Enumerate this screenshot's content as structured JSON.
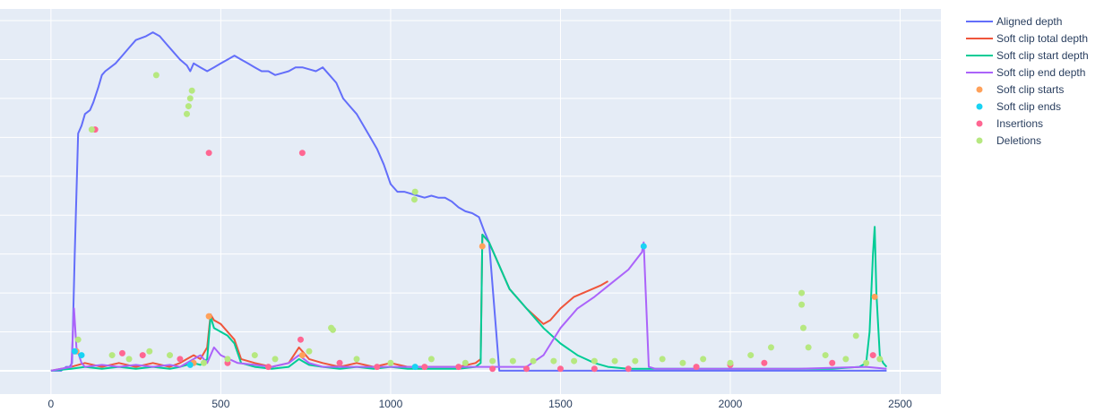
{
  "chart_data": {
    "type": "line",
    "title": "",
    "xlabel": "",
    "ylabel": "",
    "xlim": [
      -150,
      2620
    ],
    "ylim": [
      -60,
      930
    ],
    "x_ticks": [
      0,
      500,
      1000,
      1500,
      2000,
      2500
    ],
    "x_tick_labels": [
      "0",
      "500",
      "1000",
      "1500",
      "2000",
      "2500"
    ],
    "y_tick_labels_shown": false,
    "grid": true,
    "legend_position": "top-right",
    "series": [
      {
        "name": "Aligned depth",
        "kind": "line",
        "color": "#636efa",
        "x": [
          0,
          30,
          45,
          55,
          62,
          70,
          80,
          90,
          100,
          115,
          125,
          140,
          150,
          160,
          175,
          190,
          210,
          230,
          250,
          280,
          300,
          320,
          340,
          360,
          380,
          400,
          410,
          420,
          440,
          460,
          480,
          500,
          520,
          540,
          560,
          580,
          600,
          620,
          640,
          660,
          680,
          700,
          720,
          740,
          760,
          780,
          800,
          820,
          840,
          860,
          880,
          900,
          920,
          940,
          960,
          980,
          1000,
          1020,
          1040,
          1060,
          1080,
          1100,
          1120,
          1140,
          1160,
          1180,
          1200,
          1220,
          1240,
          1260,
          1275,
          1290,
          1320,
          1400,
          1500,
          1600,
          1700,
          1740,
          1760,
          1780,
          1800,
          1850,
          1900,
          1950,
          2000,
          2050,
          2100,
          2150,
          2200,
          2250,
          2300,
          2350,
          2380,
          2400,
          2410,
          2420,
          2425,
          2430,
          2440,
          2450,
          2460
        ],
        "values": [
          0,
          0,
          10,
          10,
          20,
          300,
          610,
          630,
          660,
          670,
          690,
          730,
          760,
          770,
          780,
          790,
          810,
          830,
          850,
          860,
          870,
          860,
          840,
          820,
          800,
          785,
          770,
          790,
          780,
          770,
          780,
          790,
          800,
          810,
          800,
          790,
          780,
          770,
          770,
          760,
          765,
          770,
          780,
          780,
          775,
          770,
          780,
          760,
          740,
          700,
          680,
          660,
          630,
          600,
          570,
          530,
          480,
          460,
          460,
          455,
          450,
          445,
          450,
          445,
          445,
          435,
          420,
          410,
          405,
          395,
          360,
          330,
          0,
          0,
          0,
          0,
          0,
          0,
          0,
          0,
          0,
          0,
          0,
          0,
          0,
          0,
          0,
          0,
          0,
          0,
          0,
          0,
          0,
          0,
          0,
          0,
          0,
          0,
          0,
          0,
          0
        ]
      },
      {
        "name": "Soft clip total depth",
        "kind": "line",
        "color": "#ef553b",
        "x": [
          0,
          60,
          100,
          150,
          200,
          250,
          300,
          350,
          380,
          400,
          420,
          440,
          460,
          470,
          480,
          500,
          520,
          540,
          560,
          600,
          650,
          700,
          730,
          740,
          760,
          800,
          850,
          900,
          950,
          1000,
          1050,
          1100,
          1150,
          1200,
          1250,
          1265,
          1270,
          1290,
          1320,
          1350,
          1400,
          1450,
          1470,
          1500,
          1540,
          1580,
          1620,
          1640
        ],
        "values": [
          0,
          10,
          20,
          10,
          20,
          10,
          20,
          10,
          20,
          30,
          40,
          30,
          60,
          145,
          130,
          120,
          100,
          80,
          30,
          20,
          10,
          20,
          60,
          50,
          30,
          20,
          10,
          20,
          10,
          20,
          10,
          10,
          10,
          10,
          20,
          30,
          350,
          330,
          270,
          210,
          160,
          120,
          130,
          160,
          190,
          205,
          220,
          230
        ]
      },
      {
        "name": "Soft clip start depth",
        "kind": "line",
        "color": "#00cc96",
        "x": [
          0,
          60,
          100,
          150,
          200,
          250,
          300,
          350,
          380,
          400,
          420,
          440,
          460,
          470,
          480,
          500,
          520,
          540,
          560,
          600,
          650,
          700,
          730,
          740,
          760,
          800,
          850,
          900,
          950,
          1000,
          1050,
          1100,
          1150,
          1200,
          1250,
          1265,
          1270,
          1290,
          1320,
          1350,
          1400,
          1450,
          1500,
          1550,
          1600,
          1640,
          1700,
          1750,
          1800,
          1900,
          2000,
          2100,
          2200,
          2300,
          2380,
          2400,
          2410,
          2420,
          2425,
          2430,
          2440,
          2450,
          2460
        ],
        "values": [
          0,
          5,
          10,
          5,
          10,
          5,
          10,
          5,
          10,
          15,
          20,
          15,
          30,
          140,
          110,
          100,
          90,
          70,
          20,
          10,
          5,
          10,
          30,
          25,
          15,
          10,
          5,
          10,
          5,
          10,
          5,
          5,
          5,
          5,
          10,
          20,
          350,
          330,
          270,
          210,
          160,
          110,
          70,
          40,
          20,
          10,
          5,
          5,
          5,
          5,
          5,
          5,
          5,
          5,
          10,
          20,
          100,
          300,
          370,
          200,
          40,
          20,
          10
        ]
      },
      {
        "name": "Soft clip end depth",
        "kind": "line",
        "color": "#ab63fa",
        "x": [
          0,
          60,
          68,
          75,
          90,
          100,
          150,
          200,
          250,
          300,
          350,
          380,
          400,
          420,
          440,
          460,
          480,
          500,
          550,
          600,
          650,
          700,
          730,
          760,
          800,
          900,
          1000,
          1100,
          1200,
          1300,
          1400,
          1450,
          1500,
          1550,
          1600,
          1650,
          1700,
          1740,
          1745,
          1760,
          1780,
          1800,
          2000,
          2200,
          2400,
          2460
        ],
        "values": [
          0,
          10,
          160,
          60,
          20,
          10,
          15,
          10,
          15,
          10,
          15,
          10,
          20,
          30,
          40,
          20,
          60,
          40,
          20,
          15,
          10,
          20,
          40,
          20,
          10,
          10,
          10,
          10,
          10,
          10,
          10,
          40,
          110,
          160,
          190,
          225,
          260,
          305,
          330,
          10,
          5,
          5,
          5,
          5,
          10,
          5
        ]
      },
      {
        "name": "Soft clip starts",
        "kind": "markers",
        "color": "#ffa15a",
        "x": [
          465,
          1270,
          2425,
          75,
          420,
          740
        ],
        "values": [
          140,
          320,
          190,
          50,
          20,
          40
        ]
      },
      {
        "name": "Soft clip ends",
        "kind": "markers",
        "color": "#19d3f3",
        "x": [
          70,
          1745,
          1072,
          90,
          410
        ],
        "values": [
          50,
          320,
          10,
          40,
          15
        ]
      },
      {
        "name": "Insertions",
        "kind": "markers",
        "color": "#ff6692",
        "x": [
          130,
          465,
          740,
          735,
          210,
          270,
          380,
          520,
          640,
          850,
          960,
          1100,
          1200,
          1300,
          1400,
          1500,
          1600,
          1700,
          1900,
          2000,
          2100,
          2300,
          2420
        ],
        "values": [
          620,
          560,
          560,
          80,
          45,
          40,
          30,
          20,
          10,
          20,
          10,
          10,
          10,
          5,
          5,
          5,
          5,
          5,
          10,
          15,
          20,
          20,
          40
        ]
      },
      {
        "name": "Deletions",
        "kind": "markers",
        "color": "#b6e880",
        "x": [
          310,
          400,
          405,
          410,
          415,
          1072,
          1070,
          2210,
          2210,
          2215,
          2230,
          2370,
          825,
          830,
          120,
          80,
          180,
          230,
          290,
          350,
          450,
          520,
          600,
          660,
          760,
          900,
          1000,
          1120,
          1220,
          1300,
          1360,
          1420,
          1480,
          1540,
          1600,
          1660,
          1720,
          1800,
          1860,
          1920,
          2000,
          2060,
          2120,
          2280,
          2340,
          2400,
          2440
        ],
        "values": [
          760,
          660,
          680,
          700,
          720,
          460,
          440,
          200,
          170,
          110,
          60,
          90,
          110,
          105,
          620,
          80,
          40,
          30,
          50,
          40,
          20,
          30,
          40,
          30,
          50,
          30,
          20,
          30,
          20,
          25,
          25,
          25,
          25,
          25,
          25,
          25,
          25,
          30,
          20,
          30,
          20,
          40,
          60,
          40,
          30,
          20,
          30
        ]
      }
    ]
  }
}
